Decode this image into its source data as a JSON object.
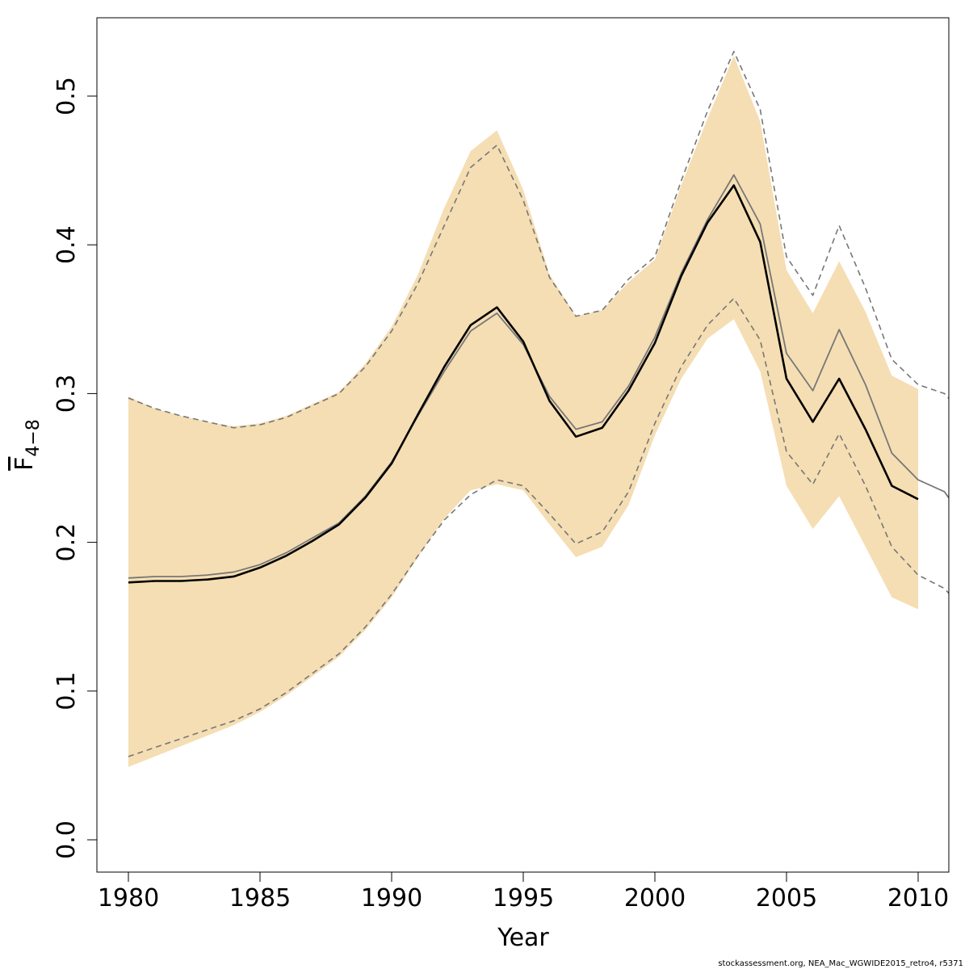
{
  "chart_data": {
    "type": "line",
    "xlabel": "Year",
    "ylabel": {
      "base": "F",
      "subscript": "4−8"
    },
    "xlim": [
      1979,
      1981.1
    ],
    "ylim": [
      -0.02,
      0.55
    ],
    "x_ticks": [
      1980,
      1985,
      1990,
      1995,
      2000,
      2005,
      2010
    ],
    "x_tick_labels": [
      "1980",
      "1985",
      "1990",
      "1995",
      "2000",
      "2005",
      "2010"
    ],
    "y_ticks": [
      0.0,
      0.1,
      0.2,
      0.3,
      0.4,
      0.5
    ],
    "y_tick_labels": [
      "0.0",
      "0.1",
      "0.2",
      "0.3",
      "0.4",
      "0.5"
    ],
    "grid": false,
    "legend": "none",
    "colors": {
      "band": "#F5DEB3",
      "estimate": "#000000",
      "comparison": "#777777"
    },
    "years": [
      1980,
      1981,
      1982,
      1983,
      1984,
      1985,
      1986,
      1987,
      1988,
      1989,
      1990,
      1991,
      1992,
      1993,
      1994,
      1995,
      1996,
      1997,
      1998,
      1999,
      2000,
      2001,
      2002,
      2003,
      2004,
      2005,
      2006,
      2007,
      2008,
      2009,
      2010
    ],
    "confidence_band": {
      "upper": [
        0.298,
        0.29,
        0.285,
        0.281,
        0.278,
        0.28,
        0.285,
        0.293,
        0.301,
        0.32,
        0.345,
        0.38,
        0.425,
        0.463,
        0.477,
        0.437,
        0.38,
        0.352,
        0.356,
        0.375,
        0.39,
        0.44,
        0.485,
        0.527,
        0.483,
        0.383,
        0.354,
        0.389,
        0.355,
        0.312,
        0.303
      ],
      "lower": [
        0.049,
        0.056,
        0.063,
        0.07,
        0.077,
        0.086,
        0.097,
        0.11,
        0.123,
        0.141,
        0.163,
        0.19,
        0.216,
        0.235,
        0.239,
        0.235,
        0.212,
        0.19,
        0.197,
        0.225,
        0.272,
        0.31,
        0.337,
        0.35,
        0.315,
        0.238,
        0.209,
        0.231,
        0.197,
        0.163,
        0.155
      ]
    },
    "series": [
      {
        "name": "",
        "style": "solid",
        "x": [
          1980,
          1981,
          1982,
          1983,
          1984,
          1985,
          1986,
          1987,
          1988,
          1989,
          1990,
          1991,
          1992,
          1993,
          1994,
          1995,
          1996,
          1997,
          1998,
          1999,
          2000,
          2001,
          2002,
          2003,
          2004,
          2005,
          2006,
          2007,
          2008,
          2009,
          2010
        ],
        "values": [
          0.173,
          0.174,
          0.174,
          0.175,
          0.177,
          0.183,
          0.191,
          0.201,
          0.212,
          0.23,
          0.253,
          0.286,
          0.318,
          0.346,
          0.358,
          0.335,
          0.295,
          0.271,
          0.277,
          0.302,
          0.334,
          0.379,
          0.415,
          0.44,
          0.402,
          0.31,
          0.281,
          0.31,
          0.276,
          0.238,
          0.229
        ]
      },
      {
        "name": "",
        "style": "solid-grey",
        "x": [
          1980,
          1981,
          1982,
          1983,
          1984,
          1985,
          1986,
          1987,
          1988,
          1989,
          1990,
          1991,
          1992,
          1993,
          1994,
          1995,
          1996,
          1997,
          1998,
          1999,
          2000,
          2001,
          2002,
          2003,
          2004,
          2005,
          2006,
          2007,
          2008,
          2009,
          2010,
          2011,
          2011.2
        ],
        "values": [
          0.176,
          0.177,
          0.177,
          0.178,
          0.18,
          0.185,
          0.193,
          0.203,
          0.213,
          0.231,
          0.254,
          0.285,
          0.315,
          0.342,
          0.354,
          0.333,
          0.298,
          0.276,
          0.281,
          0.305,
          0.338,
          0.381,
          0.417,
          0.447,
          0.414,
          0.327,
          0.302,
          0.343,
          0.306,
          0.26,
          0.242,
          0.234,
          0.229
        ]
      },
      {
        "name": "",
        "style": "dashed-upper",
        "x": [
          1980,
          1981,
          1982,
          1983,
          1984,
          1985,
          1986,
          1987,
          1988,
          1989,
          1990,
          1991,
          1992,
          1993,
          1994,
          1995,
          1996,
          1997,
          1998,
          1999,
          2000,
          2001,
          2002,
          2003,
          2004,
          2005,
          2006,
          2007,
          2008,
          2009,
          2010,
          2011,
          2011.2
        ],
        "values": [
          0.297,
          0.29,
          0.285,
          0.281,
          0.277,
          0.279,
          0.284,
          0.292,
          0.3,
          0.318,
          0.342,
          0.374,
          0.413,
          0.452,
          0.467,
          0.43,
          0.378,
          0.352,
          0.356,
          0.377,
          0.392,
          0.443,
          0.49,
          0.53,
          0.491,
          0.392,
          0.366,
          0.413,
          0.371,
          0.323,
          0.306,
          0.3,
          0.296
        ]
      },
      {
        "name": "",
        "style": "dashed-lower",
        "x": [
          1980,
          1981,
          1982,
          1983,
          1984,
          1985,
          1986,
          1987,
          1988,
          1989,
          1990,
          1991,
          1992,
          1993,
          1994,
          1995,
          1996,
          1997,
          1998,
          1999,
          2000,
          2001,
          2002,
          2003,
          2004,
          2005,
          2006,
          2007,
          2008,
          2009,
          2010,
          2011,
          2011.2
        ],
        "values": [
          0.056,
          0.062,
          0.068,
          0.074,
          0.08,
          0.088,
          0.099,
          0.112,
          0.125,
          0.143,
          0.165,
          0.191,
          0.215,
          0.232,
          0.242,
          0.238,
          0.219,
          0.199,
          0.207,
          0.234,
          0.28,
          0.318,
          0.346,
          0.364,
          0.336,
          0.261,
          0.239,
          0.273,
          0.238,
          0.197,
          0.178,
          0.169,
          0.165
        ]
      }
    ]
  },
  "footer": "stockassessment.org, NEA_Mac_WGWIDE2015_retro4, r5371"
}
